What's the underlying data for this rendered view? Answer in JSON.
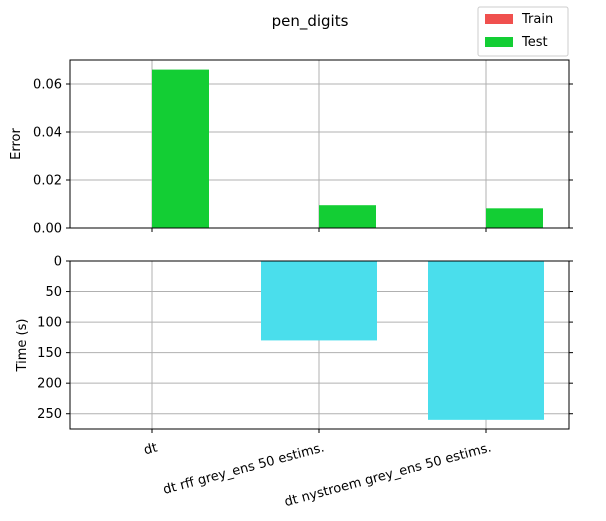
{
  "chart_data": [
    {
      "type": "bar",
      "title": "pen_digits",
      "ylabel": "Error",
      "xlabel": "",
      "categories": [
        "dt",
        "dt rff grey_ens 50 estims.",
        "dt nystroem grey_ens 50 estims."
      ],
      "series": [
        {
          "name": "Train",
          "color": "#f0504e",
          "values": [
            0.0,
            0.0,
            0.0
          ]
        },
        {
          "name": "Test",
          "color": "#13ce34",
          "values": [
            0.066,
            0.0095,
            0.0082
          ]
        }
      ],
      "ylim": [
        0,
        0.07
      ],
      "yticks": [
        0.0,
        0.02,
        0.04,
        0.06
      ],
      "ytick_labels": [
        "0.00",
        "0.02",
        "0.04",
        "0.06"
      ],
      "grid": true,
      "legend": "top-right"
    },
    {
      "type": "bar",
      "ylabel": "Time (s)",
      "xlabel": "",
      "categories": [
        "dt",
        "dt rff grey_ens 50 estims.",
        "dt nystroem grey_ens 50 estims."
      ],
      "series": [
        {
          "color": "#4adeec",
          "values": [
            0.5,
            130,
            260
          ]
        }
      ],
      "ylim": [
        0,
        275
      ],
      "y_inverted": true,
      "yticks": [
        0,
        50,
        100,
        150,
        200,
        250
      ],
      "ytick_labels": [
        "0",
        "50",
        "100",
        "150",
        "200",
        "250"
      ],
      "xtick_rotation": 15,
      "grid": true
    }
  ]
}
